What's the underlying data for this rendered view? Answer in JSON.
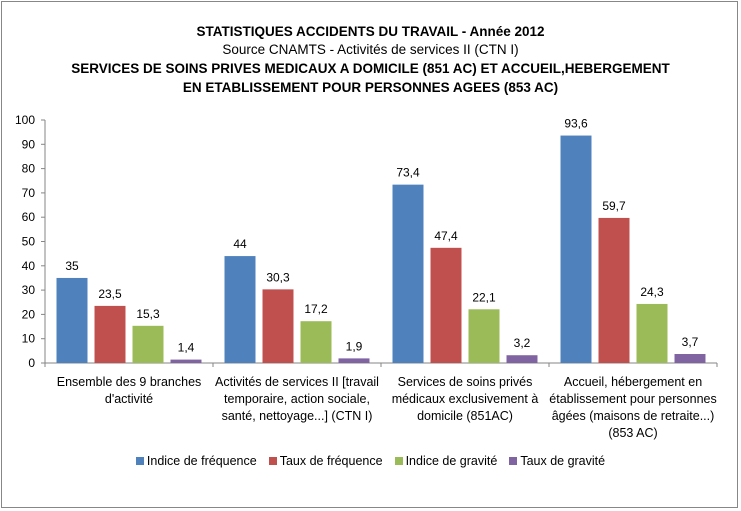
{
  "chart_data": {
    "type": "bar",
    "title": "STATISTIQUES ACCIDENTS DU TRAVAIL - Année 2012",
    "subtitle": "Source CNAMTS - Activités de services II (CTN I)",
    "title2_line1": "SERVICES DE SOINS PRIVES MEDICAUX A DOMICILE (851 AC) ET ACCUEIL,HEBERGEMENT",
    "title2_line2": "EN ETABLISSEMENT POUR PERSONNES AGEES (853 AC)",
    "categories": [
      "Ensemble des 9 branches d'activité",
      "Activités de services II [travail temporaire, action sociale, santé, nettoyage...] (CTN I)",
      "Services de soins privés médicaux exclusivement à domicile (851AC)",
      "Accueil, hébergement en établissement pour personnes âgées (maisons de retraite...) (853 AC)"
    ],
    "series": [
      {
        "name": "Indice de fréquence",
        "color": "#4F81BD",
        "values": [
          35,
          44,
          73.4,
          93.6
        ],
        "labels": [
          "35",
          "44",
          "73,4",
          "93,6"
        ]
      },
      {
        "name": "Taux de fréquence",
        "color": "#C0504D",
        "values": [
          23.5,
          30.3,
          47.4,
          59.7
        ],
        "labels": [
          "23,5",
          "30,3",
          "47,4",
          "59,7"
        ]
      },
      {
        "name": "Indice de gravité",
        "color": "#9BBB59",
        "values": [
          15.3,
          17.2,
          22.1,
          24.3
        ],
        "labels": [
          "15,3",
          "17,2",
          "22,1",
          "24,3"
        ]
      },
      {
        "name": "Taux de gravité",
        "color": "#8064A2",
        "values": [
          1.4,
          1.9,
          3.2,
          3.7
        ],
        "labels": [
          "1,4",
          "1,9",
          "3,2",
          "3,7"
        ]
      }
    ],
    "ylim": [
      0,
      100
    ],
    "yticks": [
      "0",
      "10",
      "20",
      "30",
      "40",
      "50",
      "60",
      "70",
      "80",
      "90",
      "100"
    ],
    "grid": false,
    "legend": "bottom"
  }
}
